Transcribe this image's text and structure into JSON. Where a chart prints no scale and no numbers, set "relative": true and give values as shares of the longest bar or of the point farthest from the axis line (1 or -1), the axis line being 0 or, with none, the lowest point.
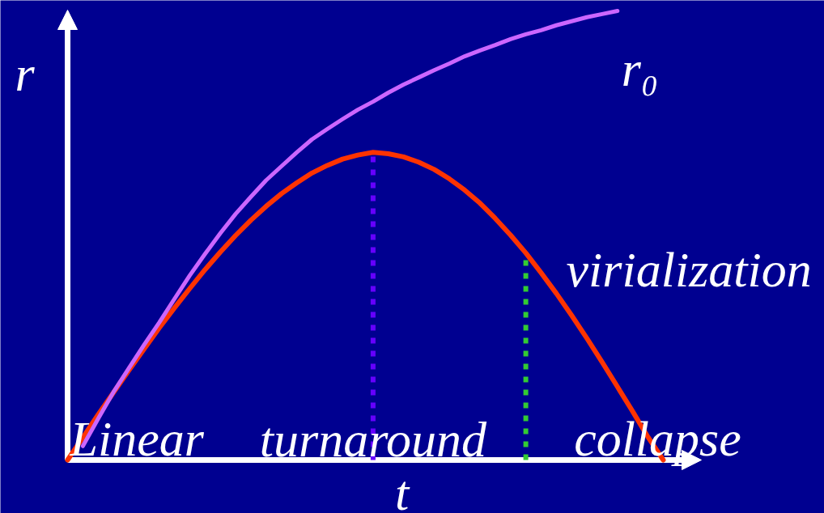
{
  "chart_data": {
    "type": "line",
    "relative": true,
    "xlabel": "t",
    "ylabel": "r",
    "line_style": "solid",
    "categories": [
      null,
      null,
      null,
      null,
      null,
      null,
      null,
      null,
      null,
      null,
      null,
      null,
      null,
      null,
      null,
      null,
      null,
      null,
      null,
      null,
      null,
      null,
      null,
      null,
      null,
      null,
      null,
      null,
      null,
      null,
      null,
      null,
      null,
      null,
      null,
      null,
      null,
      null,
      null,
      null
    ],
    "series": [
      {
        "color": "#ff3300",
        "values": [
          0,
          0.05,
          0.101,
          0.15,
          0.199,
          0.247,
          0.294,
          0.339,
          0.382,
          0.424,
          0.463,
          0.5,
          0.534,
          0.565,
          0.593,
          0.617,
          0.639,
          0.656,
          0.67,
          0.679,
          0.685,
          0.682,
          0.675,
          0.663,
          0.647,
          0.626,
          0.601,
          0.572,
          0.538,
          0.501,
          0.461,
          0.417,
          0.371,
          0.322,
          0.271,
          0.218,
          0.163,
          0.108,
          0.051,
          0
        ]
      },
      {
        "name": "r₀",
        "color": "#cc66ff",
        "values": [
          null,
          0.031,
          0.092,
          0.151,
          0.204,
          0.256,
          0.306,
          0.359,
          0.411,
          0.459,
          0.505,
          0.548,
          0.586,
          0.623,
          0.654,
          0.685,
          0.714,
          0.737,
          0.759,
          0.78,
          0.798,
          0.818,
          0.836,
          0.852,
          0.868,
          0.883,
          0.899,
          0.912,
          0.924,
          0.937,
          0.948,
          0.957,
          0.968,
          0.977,
          0.986,
          0.993,
          1.0,
          null,
          null,
          null
        ]
      }
    ],
    "annotations": [
      "Linear",
      "turnaround",
      "virialization",
      "collapse"
    ]
  }
}
